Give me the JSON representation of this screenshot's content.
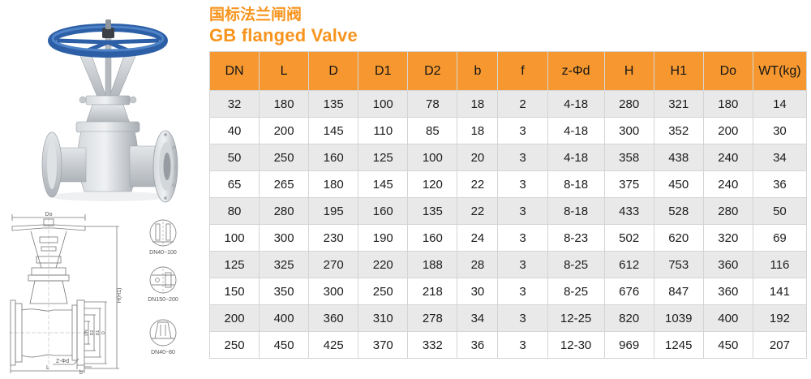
{
  "titles": {
    "chinese": "国标法兰闸阀",
    "english": "GB flanged Valve"
  },
  "colors": {
    "accent_orange": "#F7941D",
    "table_header_bg": "#F6982F",
    "table_row_alt": "#E9E9E9",
    "handwheel_blue": "#2E62AC",
    "drawing_line": "#777777"
  },
  "table": {
    "headers": [
      "DN",
      "L",
      "D",
      "D1",
      "D2",
      "b",
      "f",
      "z-Φd",
      "H",
      "H1",
      "Do",
      "WT(kg)"
    ],
    "rows": [
      [
        "32",
        "180",
        "135",
        "100",
        "78",
        "18",
        "2",
        "4-18",
        "280",
        "321",
        "180",
        "14"
      ],
      [
        "40",
        "200",
        "145",
        "110",
        "85",
        "18",
        "3",
        "4-18",
        "300",
        "352",
        "200",
        "30"
      ],
      [
        "50",
        "250",
        "160",
        "125",
        "100",
        "20",
        "3",
        "4-18",
        "358",
        "438",
        "240",
        "34"
      ],
      [
        "65",
        "265",
        "180",
        "145",
        "120",
        "22",
        "3",
        "8-18",
        "375",
        "450",
        "240",
        "36"
      ],
      [
        "80",
        "280",
        "195",
        "160",
        "135",
        "22",
        "3",
        "8-18",
        "433",
        "528",
        "280",
        "50"
      ],
      [
        "100",
        "300",
        "230",
        "190",
        "160",
        "24",
        "3",
        "8-23",
        "502",
        "620",
        "320",
        "69"
      ],
      [
        "125",
        "325",
        "270",
        "220",
        "188",
        "28",
        "3",
        "8-25",
        "612",
        "753",
        "360",
        "116"
      ],
      [
        "150",
        "350",
        "300",
        "250",
        "218",
        "30",
        "3",
        "8-25",
        "676",
        "847",
        "360",
        "141"
      ],
      [
        "200",
        "400",
        "360",
        "310",
        "278",
        "34",
        "3",
        "12-25",
        "820",
        "1039",
        "400",
        "192"
      ],
      [
        "250",
        "450",
        "425",
        "370",
        "332",
        "36",
        "3",
        "12-30",
        "969",
        "1245",
        "450",
        "207"
      ]
    ]
  },
  "drawing": {
    "labels": {
      "handwheel_diameter": "Do",
      "height": "H(H1)",
      "bolt_pattern": "Z-Φd",
      "length": "L",
      "flange_thickness": "b"
    },
    "flange_dims": [
      "DN",
      "D2",
      "D1",
      "D"
    ],
    "details": [
      {
        "label": "DN40~100"
      },
      {
        "label": "DN150~200"
      },
      {
        "label": "DN40~80"
      }
    ]
  }
}
